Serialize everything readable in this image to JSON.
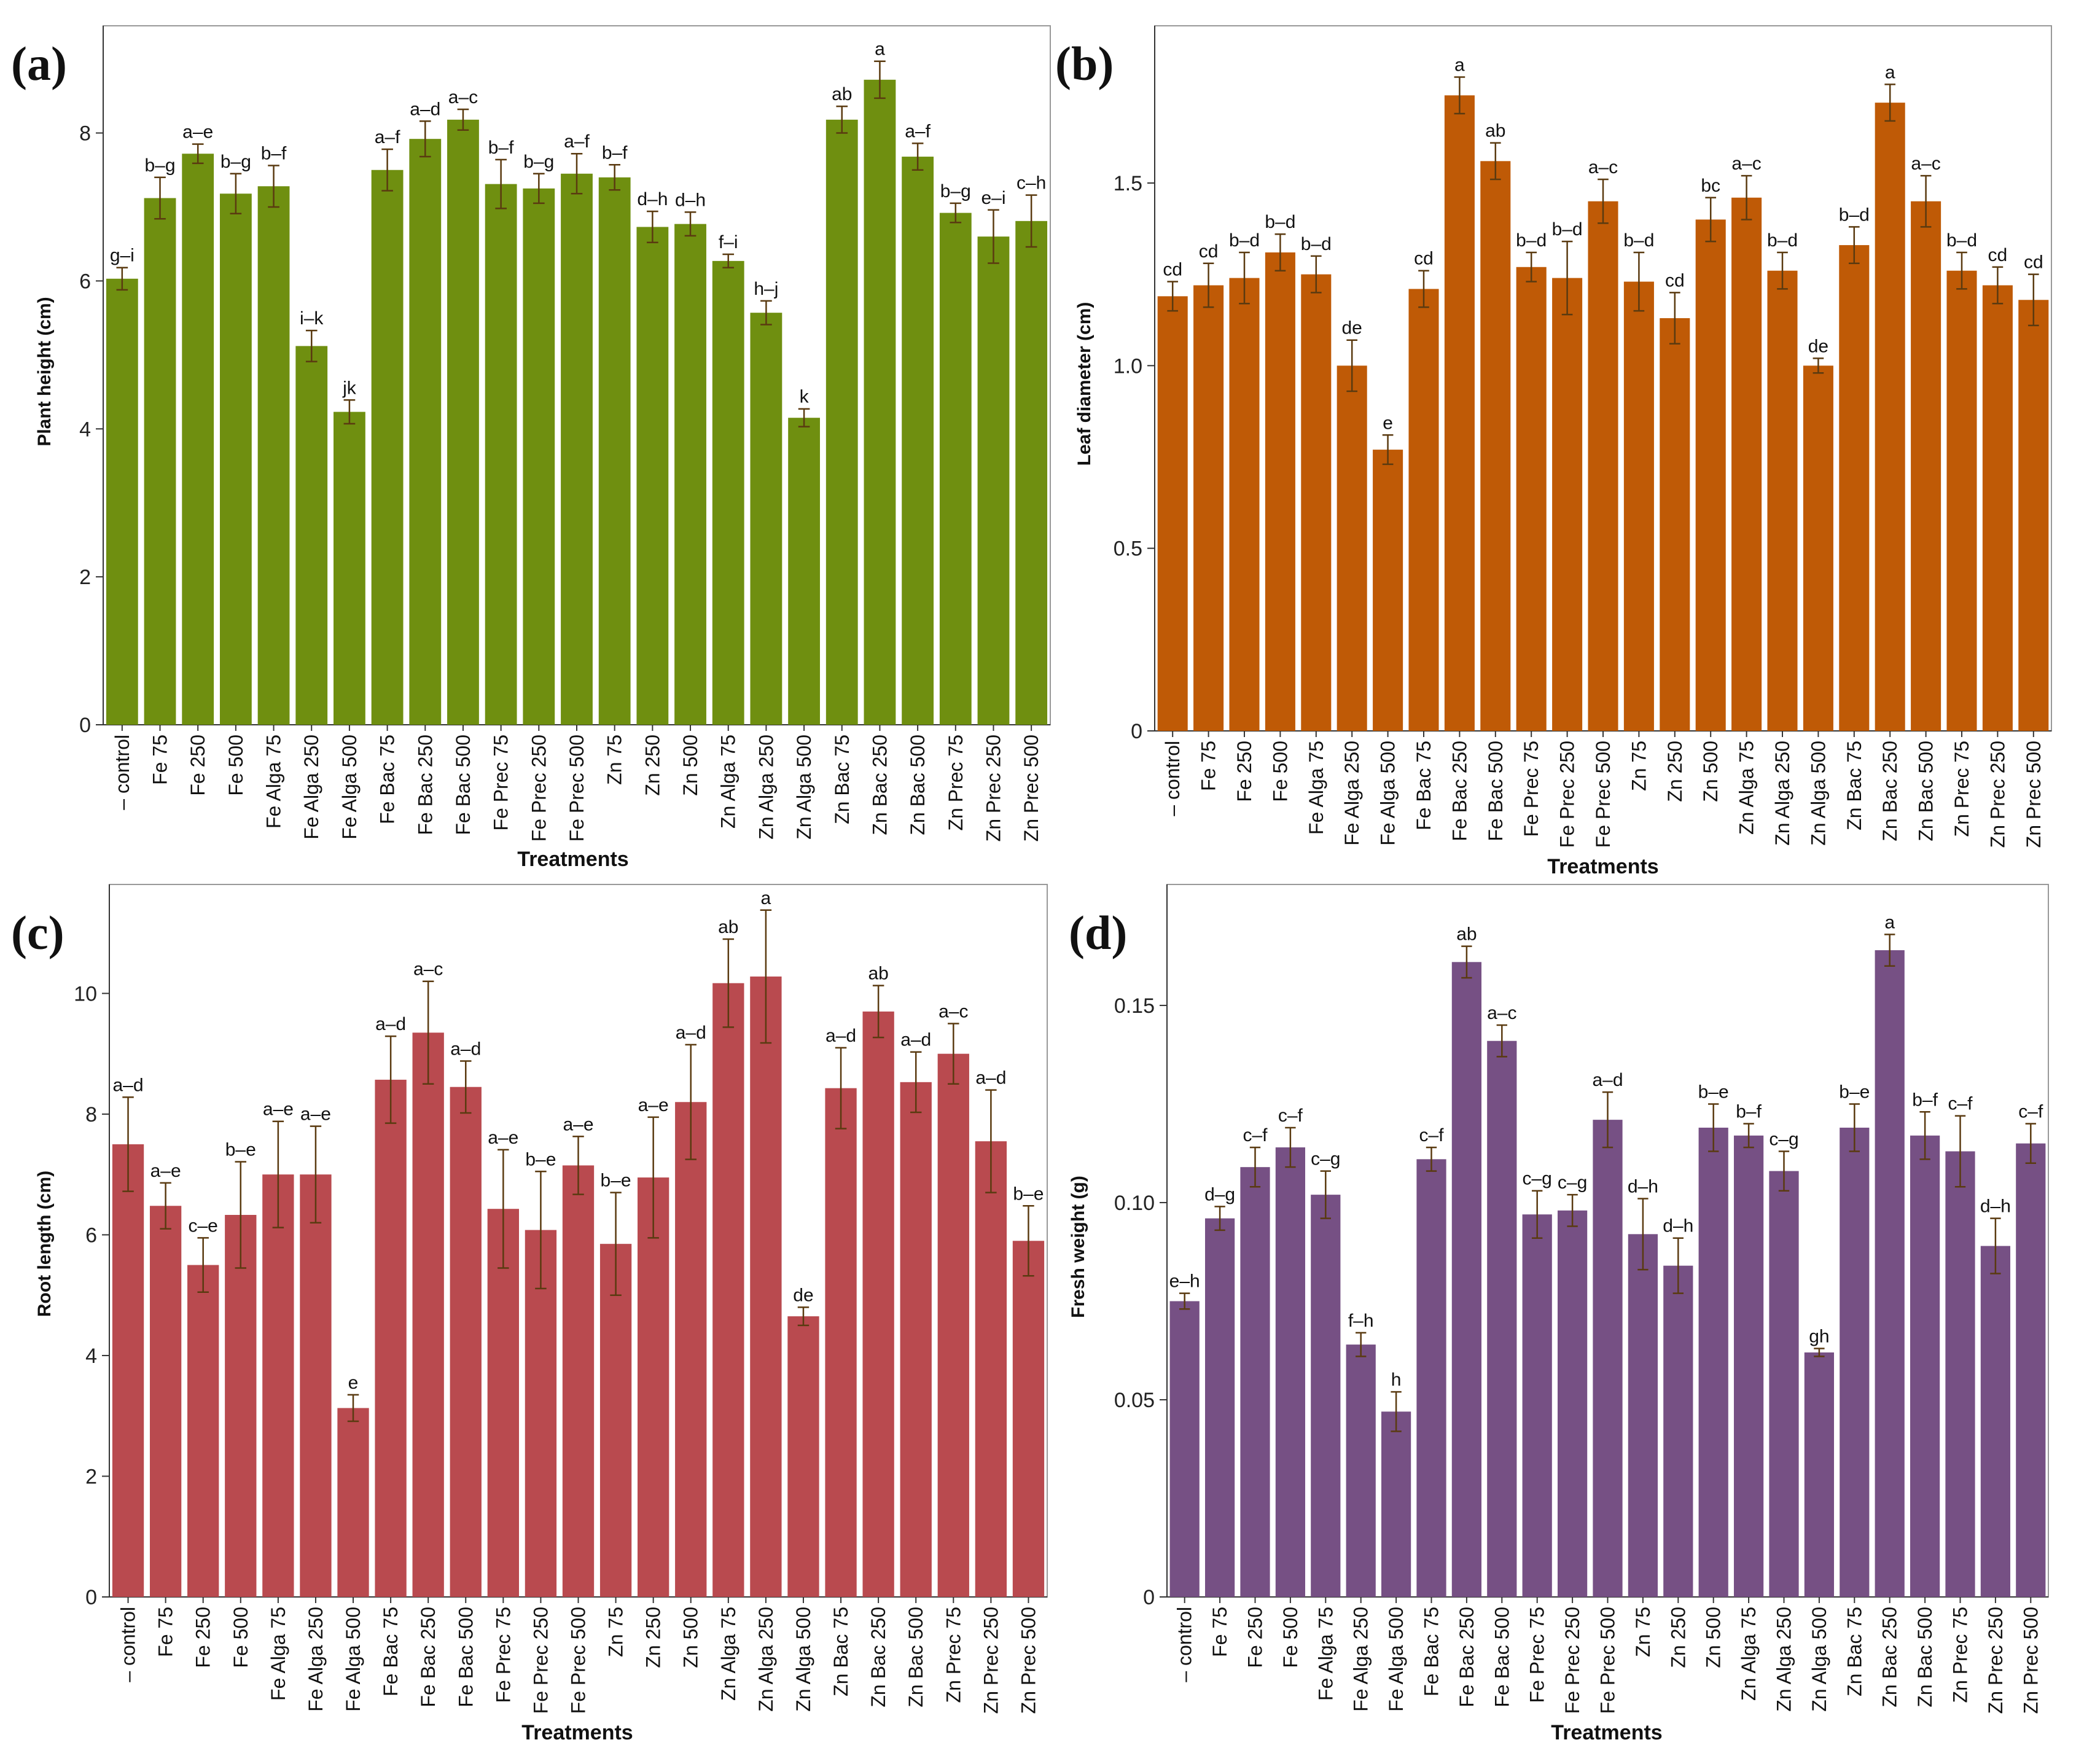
{
  "categories": [
    "– control",
    "Fe 75",
    "Fe 250",
    "Fe 500",
    "Fe Alga 75",
    "Fe Alga 250",
    "Fe Alga 500",
    "Fe Bac 75",
    "Fe Bac 250",
    "Fe Bac 500",
    "Fe Prec 75",
    "Fe Prec 250",
    "Fe Prec 500",
    "Zn 75",
    "Zn 250",
    "Zn 500",
    "Zn Alga 75",
    "Zn Alga 250",
    "Zn Alga 500",
    "Zn Bac 75",
    "Zn Bac 250",
    "Zn Bac 500",
    "Zn Prec 75",
    "Zn Prec 250",
    "Zn Prec 500"
  ],
  "chart_data": [
    {
      "panel": "(a)",
      "type": "bar",
      "color": "#6f8f10",
      "ylabel": "Plant height (cm)",
      "xlabel": "Treatments",
      "ylim": [
        0,
        9.2
      ],
      "yticks": [
        0,
        2,
        4,
        6,
        8
      ],
      "ytick_labels": [
        "0",
        "2",
        "4",
        "6",
        "8"
      ],
      "values": [
        6.03,
        7.12,
        7.72,
        7.18,
        7.28,
        5.12,
        4.23,
        7.5,
        7.92,
        8.18,
        7.31,
        7.25,
        7.45,
        7.4,
        6.73,
        6.77,
        6.27,
        5.57,
        4.15,
        8.18,
        8.72,
        7.68,
        6.92,
        6.6,
        6.81
      ],
      "errors": [
        0.15,
        0.28,
        0.13,
        0.27,
        0.28,
        0.21,
        0.16,
        0.28,
        0.24,
        0.14,
        0.33,
        0.2,
        0.27,
        0.17,
        0.21,
        0.16,
        0.09,
        0.16,
        0.12,
        0.18,
        0.25,
        0.18,
        0.13,
        0.36,
        0.35
      ],
      "letters": [
        "g–i",
        "b–g",
        "a–e",
        "b–g",
        "b–f",
        "i–k",
        "jk",
        "a–f",
        "a–d",
        "a–c",
        "b–f",
        "b–g",
        "a–f",
        "b–f",
        "d–h",
        "d–h",
        "f–i",
        "h–j",
        "k",
        "ab",
        "a",
        "a–f",
        "b–g",
        "e–i",
        "c–h"
      ]
    },
    {
      "panel": "(b)",
      "type": "bar",
      "color": "#bf5a06",
      "ylabel": "Leaf diameter (cm)",
      "xlabel": "Treatments",
      "ylim": [
        0,
        1.88
      ],
      "yticks": [
        0,
        0.5,
        1.0,
        1.5
      ],
      "ytick_labels": [
        "0",
        "0.5",
        "1.0",
        "1.5"
      ],
      "values": [
        1.19,
        1.22,
        1.24,
        1.31,
        1.25,
        1.0,
        0.77,
        1.21,
        1.74,
        1.56,
        1.27,
        1.24,
        1.45,
        1.23,
        1.13,
        1.4,
        1.46,
        1.26,
        1.0,
        1.33,
        1.72,
        1.45,
        1.26,
        1.22,
        1.18
      ],
      "errors": [
        0.04,
        0.06,
        0.07,
        0.05,
        0.05,
        0.07,
        0.04,
        0.05,
        0.05,
        0.05,
        0.04,
        0.1,
        0.06,
        0.08,
        0.07,
        0.06,
        0.06,
        0.05,
        0.02,
        0.05,
        0.05,
        0.07,
        0.05,
        0.05,
        0.07
      ],
      "letters": [
        "cd",
        "cd",
        "b–d",
        "b–d",
        "b–d",
        "de",
        "e",
        "cd",
        "a",
        "ab",
        "b–d",
        "b–d",
        "a–c",
        "b–d",
        "cd",
        "bc",
        "a–c",
        "b–d",
        "de",
        "b–d",
        "a",
        "a–c",
        "b–d",
        "cd",
        "cd"
      ]
    },
    {
      "panel": "(c)",
      "type": "bar",
      "color": "#b94a4f",
      "ylabel": "Root length (cm)",
      "xlabel": "Treatments",
      "ylim": [
        0,
        11.5
      ],
      "yticks": [
        0,
        2,
        4,
        6,
        8,
        10
      ],
      "ytick_labels": [
        "0",
        "2",
        "4",
        "6",
        "8",
        "10"
      ],
      "values": [
        7.5,
        6.48,
        5.5,
        6.33,
        7.0,
        7.0,
        3.13,
        8.57,
        9.35,
        8.45,
        6.43,
        6.08,
        7.15,
        5.85,
        6.95,
        8.2,
        10.17,
        10.28,
        4.65,
        8.43,
        9.7,
        8.53,
        9.0,
        7.55,
        5.9
      ],
      "errors": [
        0.78,
        0.38,
        0.45,
        0.88,
        0.88,
        0.8,
        0.22,
        0.72,
        0.85,
        0.43,
        0.98,
        0.97,
        0.48,
        0.85,
        1.0,
        0.95,
        0.73,
        1.1,
        0.15,
        0.67,
        0.43,
        0.5,
        0.5,
        0.85,
        0.58
      ],
      "letters": [
        "a–d",
        "a–e",
        "c–e",
        "b–e",
        "a–e",
        "a–e",
        "e",
        "a–d",
        "a–c",
        "a–d",
        "a–e",
        "b–e",
        "a–e",
        "b–e",
        "a–e",
        "a–d",
        "ab",
        "a",
        "de",
        "a–d",
        "ab",
        "a–d",
        "a–c",
        "a–d",
        "b–e"
      ]
    },
    {
      "panel": "(d)",
      "type": "bar",
      "color": "#765084",
      "ylabel": "Fresh weight (g)",
      "xlabel": "Treatments",
      "ylim": [
        0,
        0.176
      ],
      "yticks": [
        0,
        0.05,
        0.1,
        0.15
      ],
      "ytick_labels": [
        "0",
        "0.05",
        "0.10",
        "0.15"
      ],
      "values": [
        0.075,
        0.096,
        0.109,
        0.114,
        0.102,
        0.064,
        0.047,
        0.111,
        0.161,
        0.141,
        0.097,
        0.098,
        0.121,
        0.092,
        0.084,
        0.119,
        0.117,
        0.108,
        0.062,
        0.119,
        0.164,
        0.117,
        0.113,
        0.089,
        0.115
      ],
      "errors": [
        0.002,
        0.003,
        0.005,
        0.005,
        0.006,
        0.003,
        0.005,
        0.003,
        0.004,
        0.004,
        0.006,
        0.004,
        0.007,
        0.009,
        0.007,
        0.006,
        0.003,
        0.005,
        0.001,
        0.006,
        0.004,
        0.006,
        0.009,
        0.007,
        0.005
      ],
      "letters": [
        "e–h",
        "d–g",
        "c–f",
        "c–f",
        "c–g",
        "f–h",
        "h",
        "c–f",
        "ab",
        "a–c",
        "c–g",
        "c–g",
        "a–d",
        "d–h",
        "d–h",
        "b–e",
        "b–f",
        "c–g",
        "gh",
        "b–e",
        "a",
        "b–f",
        "c–f",
        "d–h",
        "c–f"
      ]
    }
  ]
}
